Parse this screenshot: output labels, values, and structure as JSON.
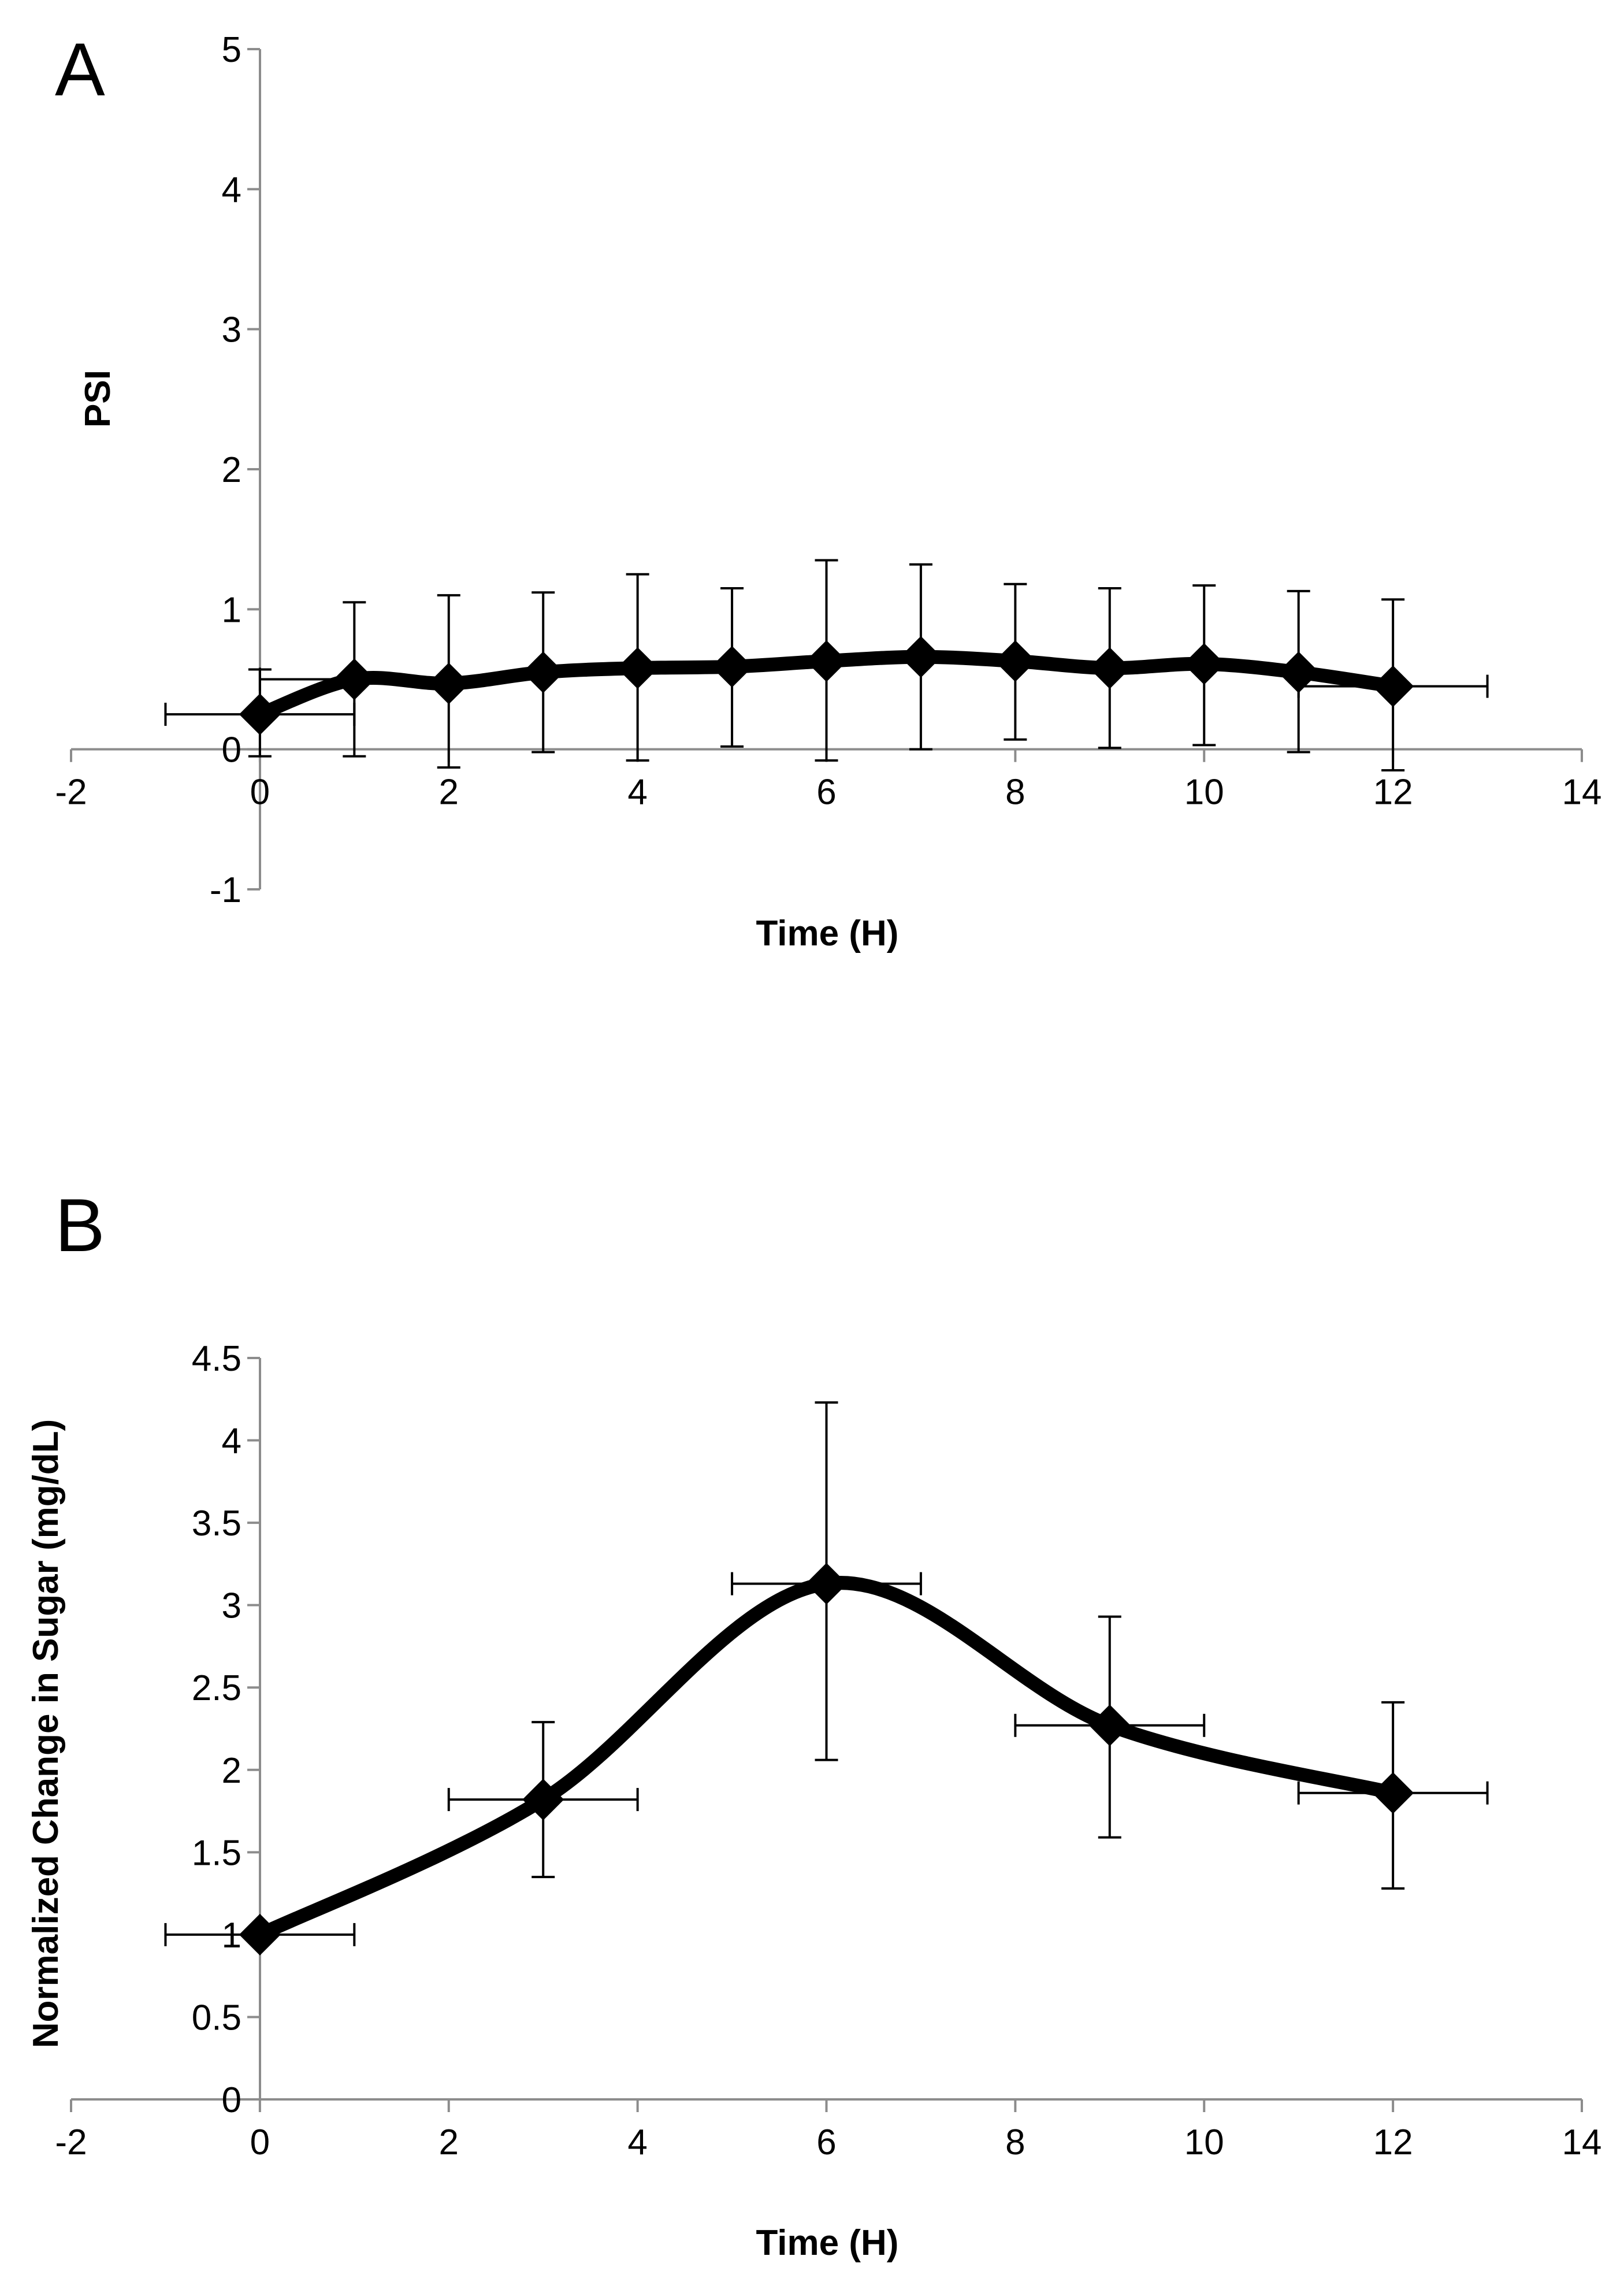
{
  "chart_data": [
    {
      "panel": "A",
      "type": "line",
      "xlabel": "Time (H)",
      "ylabel": "PSI",
      "xlim": [
        -2,
        14
      ],
      "ylim": [
        -1,
        5
      ],
      "xticks": [
        -2,
        0,
        2,
        4,
        6,
        8,
        10,
        12,
        14
      ],
      "yticks": [
        -1,
        0,
        1,
        2,
        3,
        4,
        5
      ],
      "grid": false,
      "marker": "diamond",
      "series": [
        {
          "x": [
            0,
            1,
            2,
            3,
            4,
            5,
            6,
            7,
            8,
            9,
            10,
            11,
            12
          ],
          "y": [
            0.25,
            0.5,
            0.47,
            0.55,
            0.58,
            0.59,
            0.63,
            0.66,
            0.63,
            0.58,
            0.61,
            0.55,
            0.45
          ],
          "y_err_low": [
            0.57,
            1.05,
            1.1,
            1.12,
            1.25,
            1.15,
            1.35,
            1.32,
            1.18,
            1.15,
            1.17,
            1.13,
            1.07
          ],
          "y_err_high": [
            -0.05,
            -0.05,
            -0.13,
            -0.02,
            -0.08,
            0.02,
            -0.08,
            0.0,
            0.07,
            0.01,
            0.03,
            -0.02,
            -0.15
          ],
          "x_err": [
            1,
            1,
            null,
            null,
            null,
            null,
            null,
            null,
            null,
            null,
            null,
            null,
            1
          ]
        }
      ]
    },
    {
      "panel": "B",
      "type": "line",
      "xlabel": "Time (H)",
      "ylabel": "Normalized Change in Sugar (mg/dL)",
      "xlim": [
        -2,
        14
      ],
      "ylim": [
        0,
        4.5
      ],
      "xticks": [
        -2,
        0,
        2,
        4,
        6,
        8,
        10,
        12,
        14
      ],
      "yticks": [
        0,
        0.5,
        1,
        1.5,
        2,
        2.5,
        3,
        3.5,
        4,
        4.5
      ],
      "grid": false,
      "marker": "diamond",
      "series": [
        {
          "x": [
            0,
            3,
            6,
            9,
            12
          ],
          "y": [
            1.0,
            1.82,
            3.13,
            2.27,
            1.86
          ],
          "y_upper": [
            null,
            2.29,
            4.23,
            2.93,
            2.41
          ],
          "y_lower": [
            null,
            1.35,
            2.06,
            1.59,
            1.28
          ],
          "x_err": [
            1,
            1,
            1,
            1,
            1
          ]
        }
      ]
    }
  ]
}
